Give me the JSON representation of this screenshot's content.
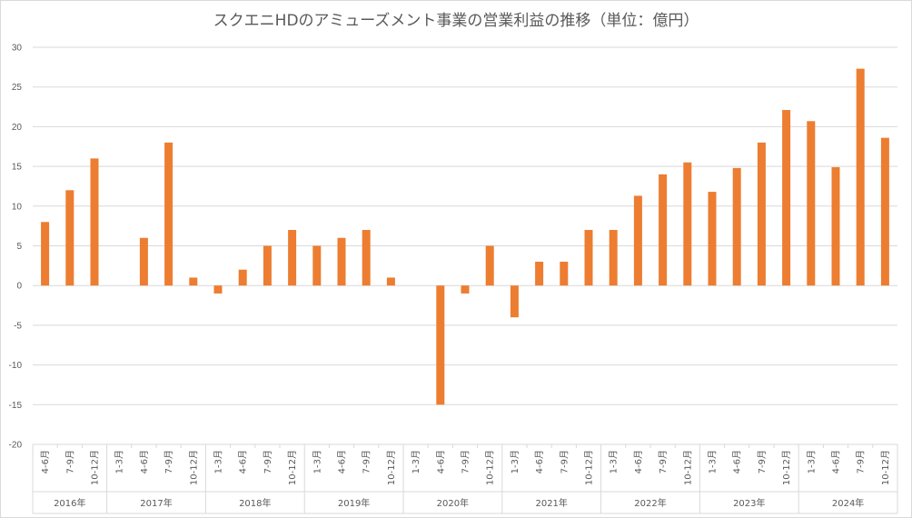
{
  "chart_data": {
    "type": "bar",
    "title": "スクエニHDのアミューズメント事業の営業利益の推移（単位：億円）",
    "ylim": [
      -20,
      30
    ],
    "yticks": [
      30,
      25,
      20,
      15,
      10,
      5,
      0,
      -5,
      -10,
      -15,
      -20
    ],
    "grid": true,
    "bar_color": "#ED7D31",
    "groups": [
      {
        "label": "2016年",
        "categories": [
          "4-6月",
          "7-9月",
          "10-12月"
        ],
        "values": [
          8,
          12,
          16
        ]
      },
      {
        "label": "2017年",
        "categories": [
          "1-3月",
          "4-6月",
          "7-9月",
          "10-12月"
        ],
        "values": [
          0,
          6,
          18,
          1
        ]
      },
      {
        "label": "2018年",
        "categories": [
          "1-3月",
          "4-6月",
          "7-9月",
          "10-12月"
        ],
        "values": [
          -1,
          2,
          5,
          7
        ]
      },
      {
        "label": "2019年",
        "categories": [
          "1-3月",
          "4-6月",
          "7-9月",
          "10-12月"
        ],
        "values": [
          5,
          6,
          7,
          1
        ]
      },
      {
        "label": "2020年",
        "categories": [
          "1-3月",
          "4-6月",
          "7-9月",
          "10-12月"
        ],
        "values": [
          0,
          -15,
          -1,
          5
        ]
      },
      {
        "label": "2021年",
        "categories": [
          "1-3月",
          "4-6月",
          "7-9月",
          "10-12月"
        ],
        "values": [
          -4,
          3,
          3,
          7
        ]
      },
      {
        "label": "2022年",
        "categories": [
          "1-3月",
          "4-6月",
          "7-9月",
          "10-12月"
        ],
        "values": [
          7,
          11.3,
          14,
          15.5
        ]
      },
      {
        "label": "2023年",
        "categories": [
          "1-3月",
          "4-6月",
          "7-9月",
          "10-12月"
        ],
        "values": [
          11.8,
          14.8,
          18,
          22.1
        ]
      },
      {
        "label": "2024年",
        "categories": [
          "1-3月",
          "4-6月",
          "7-9月",
          "10-12月"
        ],
        "values": [
          20.7,
          14.9,
          27.3,
          18.6
        ]
      }
    ]
  }
}
